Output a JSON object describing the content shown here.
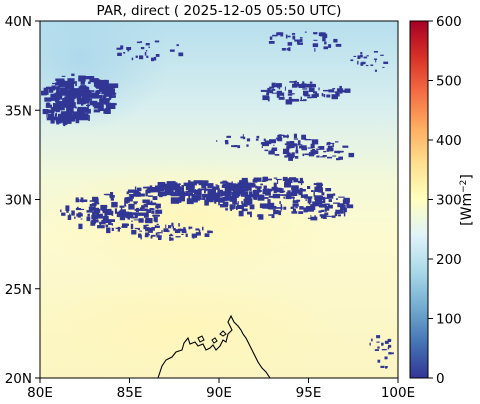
{
  "title": "PAR, direct ( 2025-12-05 05:50 UTC)",
  "map": {
    "lon_range": [
      80,
      100
    ],
    "lat_range": [
      20,
      40
    ],
    "x_ticks": [
      {
        "value": 80,
        "label": "80E"
      },
      {
        "value": 85,
        "label": "85E"
      },
      {
        "value": 90,
        "label": "90E"
      },
      {
        "value": 95,
        "label": "95E"
      },
      {
        "value": 100,
        "label": "100E"
      }
    ],
    "y_ticks": [
      {
        "value": 20,
        "label": "20N"
      },
      {
        "value": 25,
        "label": "25N"
      },
      {
        "value": 30,
        "label": "30N"
      },
      {
        "value": 35,
        "label": "35N"
      },
      {
        "value": 40,
        "label": "40N"
      }
    ]
  },
  "colorbar": {
    "label_base": "[Wm",
    "label_exp": "−2",
    "label_close": "]",
    "range": [
      0,
      600
    ],
    "colormap": "RdYlBu_r",
    "ticks": [
      {
        "value": 0,
        "label": "0"
      },
      {
        "value": 100,
        "label": "100"
      },
      {
        "value": 200,
        "label": "200"
      },
      {
        "value": 300,
        "label": "300"
      },
      {
        "value": 400,
        "label": "400"
      },
      {
        "value": 500,
        "label": "500"
      },
      {
        "value": 600,
        "label": "600"
      }
    ]
  },
  "colors": {
    "masked_cloud": "#313695",
    "coastline": "#000000",
    "field_north": "#bde3f0",
    "field_mid": "#e6f5f2",
    "field_south": "#fdfbc7"
  }
}
